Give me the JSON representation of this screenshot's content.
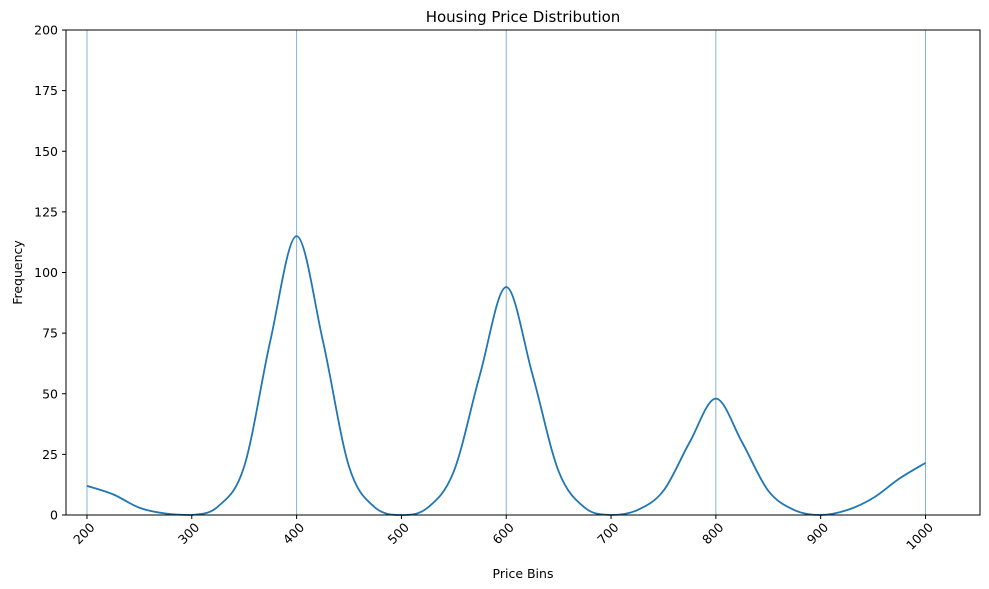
{
  "chart_data": {
    "type": "line",
    "title": "Housing Price Distribution",
    "xlabel": "Price Bins",
    "ylabel": "Frequency",
    "xlim": [
      180,
      1052
    ],
    "ylim": [
      0,
      200
    ],
    "xticks": [
      200,
      300,
      400,
      500,
      600,
      700,
      800,
      900,
      1000
    ],
    "yticks": [
      0,
      25,
      50,
      75,
      100,
      125,
      150,
      175,
      200
    ],
    "vlines": [
      200,
      400,
      600,
      800,
      1000
    ],
    "grid": false,
    "legend": "none",
    "colors": {
      "line": "#1f77b4",
      "vline": "#1f77b4"
    },
    "series": [
      {
        "x": [
          200,
          225,
          250,
          275,
          300,
          325,
          350,
          375,
          400,
          425,
          450,
          475,
          500,
          525,
          550,
          575,
          600,
          625,
          650,
          675,
          700,
          725,
          750,
          775,
          800,
          825,
          850,
          875,
          900,
          925,
          950,
          975,
          1000
        ],
        "values": [
          12,
          8.5,
          3,
          0.6,
          0,
          3.5,
          20,
          72,
          115,
          72,
          20,
          3,
          0,
          3,
          18,
          58,
          94,
          58,
          18,
          3,
          0,
          2,
          10,
          30,
          48,
          30,
          10,
          2,
          0,
          2,
          7,
          15,
          21.5
        ]
      }
    ]
  }
}
